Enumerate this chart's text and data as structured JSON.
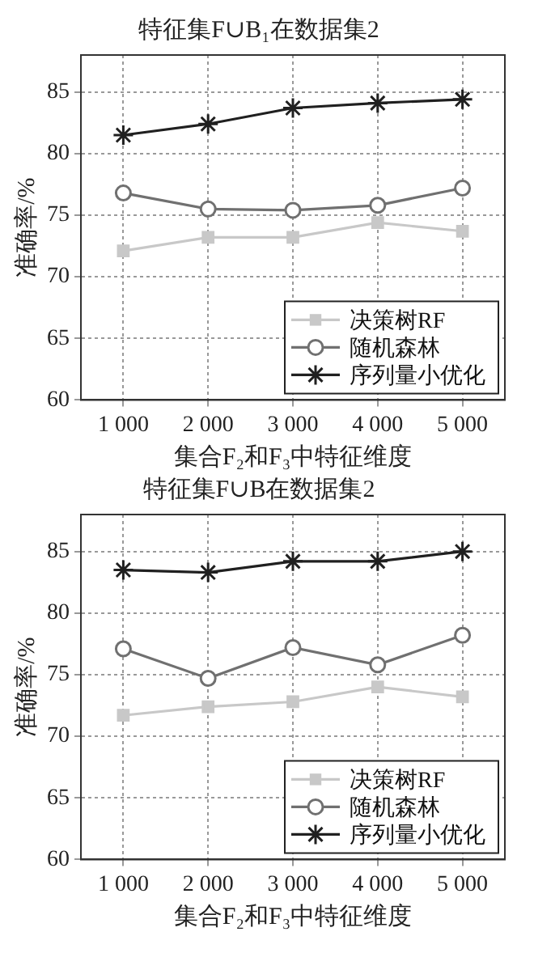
{
  "chart_data": [
    {
      "type": "line",
      "title": "特征集F∪B₁在数据集2",
      "xlabel": "集合F₂和F₃中特征维度",
      "ylabel": "准确率/%",
      "categories": [
        "1 000",
        "2 000",
        "3 000",
        "4 000",
        "5 000"
      ],
      "ylim": [
        60,
        88
      ],
      "yticks": [
        60,
        65,
        70,
        75,
        80,
        85
      ],
      "grid": true,
      "legend": "bottom right",
      "series": [
        {
          "name": "决策树RF",
          "color": "#c8c8c8",
          "marker": "square",
          "values": [
            72.1,
            73.2,
            73.2,
            74.4,
            73.7
          ]
        },
        {
          "name": "随机森林",
          "color": "#707070",
          "marker": "circle",
          "values": [
            76.8,
            75.5,
            75.4,
            75.8,
            77.2
          ]
        },
        {
          "name": "序列量小优化",
          "color": "#202020",
          "marker": "cross",
          "values": [
            81.5,
            82.4,
            83.7,
            84.1,
            84.4
          ]
        }
      ]
    },
    {
      "type": "line",
      "title": "特征集F∪B在数据集2",
      "xlabel": "集合F₂和F₃中特征维度",
      "ylabel": "准确率/%",
      "categories": [
        "1 000",
        "2 000",
        "3 000",
        "4 000",
        "5 000"
      ],
      "ylim": [
        60,
        88
      ],
      "yticks": [
        60,
        65,
        70,
        75,
        80,
        85
      ],
      "grid": true,
      "legend": "bottom right",
      "series": [
        {
          "name": "决策树RF",
          "color": "#c8c8c8",
          "marker": "square",
          "values": [
            71.7,
            72.4,
            72.8,
            74.0,
            73.2
          ]
        },
        {
          "name": "随机森林",
          "color": "#707070",
          "marker": "circle",
          "values": [
            77.1,
            74.7,
            77.2,
            75.8,
            78.2
          ]
        },
        {
          "name": "序列量小优化",
          "color": "#202020",
          "marker": "cross",
          "values": [
            83.5,
            83.3,
            84.2,
            84.2,
            85.0
          ]
        }
      ]
    }
  ]
}
